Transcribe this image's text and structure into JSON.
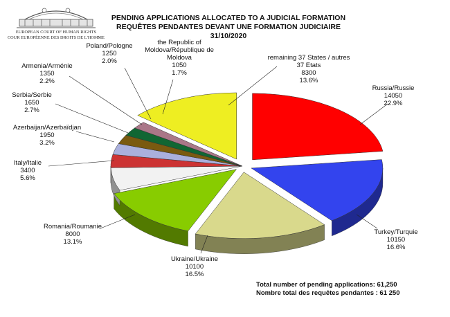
{
  "header": {
    "org_en": "EUROPEAN COURT OF HUMAN RIGHTS",
    "org_fr": "COUR EUROPÉENNE DES DROITS DE L'HOMME"
  },
  "chart_data": {
    "type": "pie",
    "title": "PENDING APPLICATIONS ALLOCATED TO A JUDICIAL FORMATION",
    "subtitle": "REQUÊTES PENDANTES DEVANT UNE FORMATION JUDICIAIRE",
    "date": "31/10/2020",
    "slices": [
      {
        "label_lines": [
          "Russia/Russie"
        ],
        "value": 14050,
        "value_text": "14050",
        "pct_text": "22.9%",
        "color": "#ff0000"
      },
      {
        "label_lines": [
          "Turkey/Turquie"
        ],
        "value": 10150,
        "value_text": "10150",
        "pct_text": "16.6%",
        "color": "#3344ee"
      },
      {
        "label_lines": [
          "Ukraine/Ukraine"
        ],
        "value": 10100,
        "value_text": "10100",
        "pct_text": "16.5%",
        "color": "#d9d98c"
      },
      {
        "label_lines": [
          "Romania/Roumanie"
        ],
        "value": 8000,
        "value_text": "8000",
        "pct_text": "13.1%",
        "color": "#88cc00"
      },
      {
        "label_lines": [
          "Italy/Italie"
        ],
        "value": 3400,
        "value_text": "3400",
        "pct_text": "5.6%",
        "color": "#f2f2f2"
      },
      {
        "label_lines": [
          "Azerbaijan/Azerbaïdjan"
        ],
        "value": 1950,
        "value_text": "1950",
        "pct_text": "3.2%",
        "color": "#cc3333"
      },
      {
        "label_lines": [
          "Serbia/Serbie"
        ],
        "value": 1650,
        "value_text": "1650",
        "pct_text": "2.7%",
        "color": "#aab0dd"
      },
      {
        "label_lines": [
          "Armenia/Arménie"
        ],
        "value": 1350,
        "value_text": "1350",
        "pct_text": "2.2%",
        "color": "#7a5a10"
      },
      {
        "label_lines": [
          "Poland/Pologne"
        ],
        "value": 1250,
        "value_text": "1250",
        "pct_text": "2.0%",
        "color": "#116633"
      },
      {
        "label_lines": [
          "the Republic of",
          "Moldova/République de",
          "Moldova"
        ],
        "value": 1050,
        "value_text": "1050",
        "pct_text": "1.7%",
        "color": "#aa7788"
      },
      {
        "label_lines": [
          "remaining 37 States / autres",
          "37 Etats"
        ],
        "value": 8300,
        "value_text": "8300",
        "pct_text": "13.6%",
        "color": "#eeee22"
      }
    ]
  },
  "footer": {
    "total_en": "Total number of pending applications:  61,250",
    "total_fr": "Nombre total des requêtes pendantes : 61 250"
  }
}
